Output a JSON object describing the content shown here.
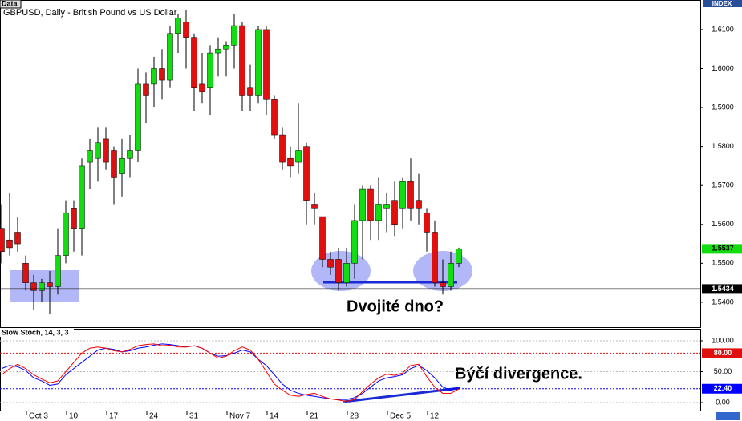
{
  "chart_data": [
    {
      "type": "candlestick",
      "title": "GBPUSD, Daily - British Pound vs US Dollar",
      "tag": "Data",
      "axis_tag": "INDEX",
      "annotation": "Dvojité dno?",
      "categories": [
        null,
        null,
        null,
        "Oct 3",
        null,
        null,
        null,
        null,
        "10",
        null,
        null,
        null,
        null,
        "17",
        null,
        null,
        null,
        null,
        "24",
        null,
        null,
        null,
        null,
        "31",
        null,
        null,
        null,
        null,
        "Nov 7",
        null,
        null,
        null,
        null,
        "14",
        null,
        null,
        null,
        null,
        "21",
        null,
        null,
        null,
        null,
        "28",
        null,
        null,
        null,
        null,
        "Dec 5",
        null,
        null,
        null,
        null,
        "12",
        null,
        null,
        null,
        null
      ],
      "open": [
        1.559,
        1.556,
        1.558,
        1.55,
        1.545,
        1.543,
        1.545,
        1.544,
        1.552,
        1.564,
        1.559,
        1.576,
        1.577,
        1.582,
        1.579,
        1.573,
        1.577,
        1.579,
        1.596,
        1.596,
        1.6,
        1.597,
        1.609,
        1.612,
        1.608,
        1.596,
        1.595,
        1.604,
        1.605,
        1.606,
        1.611,
        1.595,
        1.593,
        1.61,
        1.592,
        1.583,
        1.577,
        1.576,
        1.58,
        1.565,
        1.562,
        1.551,
        1.551,
        1.545,
        1.55,
        1.561,
        1.569,
        1.561,
        1.564,
        1.566,
        1.564,
        1.571,
        1.566,
        1.563,
        1.558,
        1.545,
        1.544,
        1.55
      ],
      "high": [
        1.565,
        1.568,
        1.562,
        1.552,
        1.547,
        1.546,
        1.548,
        1.559,
        1.566,
        1.566,
        1.577,
        1.582,
        1.585,
        1.585,
        1.58,
        1.582,
        1.583,
        1.6,
        1.599,
        1.603,
        1.605,
        1.611,
        1.614,
        1.615,
        1.609,
        1.604,
        1.606,
        1.608,
        1.607,
        1.614,
        1.612,
        1.601,
        1.611,
        1.611,
        1.593,
        1.585,
        1.58,
        1.591,
        1.581,
        1.568,
        1.562,
        1.553,
        1.554,
        1.554,
        1.565,
        1.57,
        1.57,
        1.572,
        1.568,
        1.571,
        1.572,
        1.577,
        1.573,
        1.564,
        1.561,
        1.551,
        1.553,
        1.554
      ],
      "low": [
        1.55,
        1.552,
        1.553,
        1.543,
        1.538,
        1.54,
        1.537,
        1.542,
        1.55,
        1.553,
        1.552,
        1.569,
        1.571,
        1.574,
        1.565,
        1.567,
        1.572,
        1.576,
        1.586,
        1.59,
        1.592,
        1.595,
        1.604,
        1.6,
        1.589,
        1.591,
        1.588,
        1.598,
        1.598,
        1.6,
        1.589,
        1.589,
        1.591,
        1.588,
        1.582,
        1.574,
        1.572,
        1.573,
        1.56,
        1.56,
        1.549,
        1.547,
        1.543,
        1.544,
        1.546,
        1.551,
        1.556,
        1.556,
        1.558,
        1.557,
        1.559,
        1.561,
        1.56,
        1.553,
        1.544,
        1.542,
        1.543,
        1.549
      ],
      "close": [
        1.553,
        1.554,
        1.555,
        1.545,
        1.543,
        1.545,
        1.544,
        1.552,
        1.563,
        1.559,
        1.575,
        1.579,
        1.581,
        1.576,
        1.572,
        1.577,
        1.579,
        1.596,
        1.593,
        1.6,
        1.597,
        1.609,
        1.613,
        1.608,
        1.595,
        1.594,
        1.604,
        1.605,
        1.606,
        1.611,
        1.593,
        1.593,
        1.61,
        1.592,
        1.583,
        1.576,
        1.575,
        1.579,
        1.566,
        1.564,
        1.551,
        1.549,
        1.545,
        1.55,
        1.561,
        1.569,
        1.561,
        1.565,
        1.565,
        1.56,
        1.571,
        1.564,
        1.564,
        1.558,
        1.545,
        1.544,
        1.55,
        1.5537
      ],
      "up_color": "#11dd11",
      "down_color": "#e01010",
      "ylim": [
        1.5336,
        1.6176
      ],
      "yticks": [
        {
          "value": 1.61,
          "label": "1.6100"
        },
        {
          "value": 1.6,
          "label": "1.6000"
        },
        {
          "value": 1.59,
          "label": "1.5900"
        },
        {
          "value": 1.58,
          "label": "1.5800"
        },
        {
          "value": 1.57,
          "label": "1.5700"
        },
        {
          "value": 1.56,
          "label": "1.5600"
        },
        {
          "value": 1.55,
          "label": "1.5500"
        },
        {
          "value": 1.54,
          "label": "1.5400"
        }
      ],
      "price_markers": [
        1.5537,
        1.5434
      ],
      "price_marker_colors": [
        "#11dd11",
        "#000000"
      ]
    },
    {
      "type": "line",
      "title": "Slow Stoch, 14, 3, 3",
      "annotation": "Býčí divergence.",
      "series": [
        {
          "color": "#0000ff",
          "values": [
            55,
            60,
            58,
            52,
            40,
            35,
            28,
            30,
            45,
            55,
            65,
            75,
            85,
            88,
            86,
            82,
            84,
            88,
            90,
            93,
            95,
            94,
            92,
            90,
            92,
            88,
            80,
            75,
            76,
            80,
            85,
            82,
            70,
            60,
            45,
            30,
            20,
            15,
            12,
            10,
            8,
            6,
            5,
            5,
            8,
            15,
            25,
            35,
            40,
            42,
            45,
            55,
            60,
            52,
            40,
            25,
            20,
            25
          ]
        },
        {
          "color": "#ff0000",
          "values": [
            45,
            55,
            62,
            55,
            45,
            38,
            32,
            35,
            50,
            65,
            80,
            88,
            90,
            88,
            84,
            82,
            86,
            92,
            94,
            95,
            92,
            93,
            90,
            90,
            92,
            88,
            80,
            72,
            75,
            84,
            90,
            85,
            70,
            50,
            30,
            20,
            12,
            10,
            13,
            15,
            10,
            6,
            4,
            2,
            5,
            18,
            30,
            40,
            46,
            44,
            48,
            60,
            62,
            42,
            25,
            15,
            15,
            22
          ]
        }
      ],
      "ylim": [
        -13,
        119.5
      ],
      "yticks": [
        {
          "value": 100,
          "label": "100.00"
        },
        {
          "value": 50,
          "label": "50.00"
        },
        {
          "value": 0,
          "label": "0.00"
        }
      ],
      "levels": [
        {
          "value": 80,
          "label": "80.00"
        },
        {
          "value": 22.4,
          "label": "22.40"
        }
      ],
      "level_colors": [
        "#e01010",
        "#0000ff"
      ]
    }
  ]
}
